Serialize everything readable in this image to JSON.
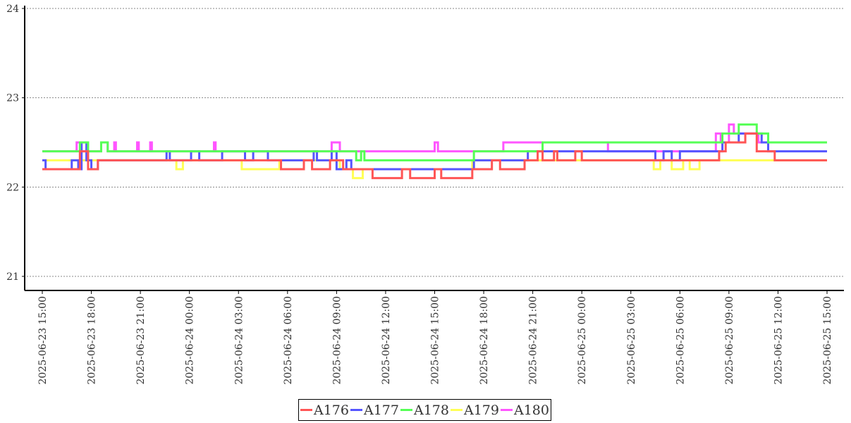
{
  "chart_data": {
    "type": "line",
    "step": true,
    "title": "",
    "xlabel": "",
    "ylabel": "",
    "ylim": [
      21,
      24
    ],
    "yticks": [
      "21",
      "22",
      "23",
      "24"
    ],
    "x_unit": "hours since 2025-06-23 15:00",
    "xlim": [
      0,
      48
    ],
    "xticks": [
      {
        "h": 0,
        "label": "2025-06-23  15:00"
      },
      {
        "h": 3,
        "label": "2025-06-23  18:00"
      },
      {
        "h": 6,
        "label": "2025-06-23  21:00"
      },
      {
        "h": 9,
        "label": "2025-06-24  00:00"
      },
      {
        "h": 12,
        "label": "2025-06-24  03:00"
      },
      {
        "h": 15,
        "label": "2025-06-24  06:00"
      },
      {
        "h": 18,
        "label": "2025-06-24  09:00"
      },
      {
        "h": 21,
        "label": "2025-06-24  12:00"
      },
      {
        "h": 24,
        "label": "2025-06-24  15:00"
      },
      {
        "h": 27,
        "label": "2025-06-24  18:00"
      },
      {
        "h": 30,
        "label": "2025-06-24  21:00"
      },
      {
        "h": 33,
        "label": "2025-06-25  00:00"
      },
      {
        "h": 36,
        "label": "2025-06-25  03:00"
      },
      {
        "h": 39,
        "label": "2025-06-25  06:00"
      },
      {
        "h": 42,
        "label": "2025-06-25  09:00"
      },
      {
        "h": 45,
        "label": "2025-06-25  12:00"
      },
      {
        "h": 48,
        "label": "2025-06-25  15:00"
      }
    ],
    "grid": "horizontal dotted",
    "legend_position": "bottom-center",
    "series": [
      {
        "name": "A180",
        "color": "#ff55ff",
        "points": [
          [
            0,
            22.4
          ],
          [
            2.1,
            22.5
          ],
          [
            2.4,
            22.4
          ],
          [
            3.6,
            22.5
          ],
          [
            4.0,
            22.4
          ],
          [
            4.4,
            22.5
          ],
          [
            4.5,
            22.4
          ],
          [
            5.8,
            22.5
          ],
          [
            5.9,
            22.4
          ],
          [
            6.6,
            22.5
          ],
          [
            6.7,
            22.4
          ],
          [
            10.5,
            22.5
          ],
          [
            10.6,
            22.4
          ],
          [
            17.7,
            22.5
          ],
          [
            18.2,
            22.4
          ],
          [
            24.0,
            22.5
          ],
          [
            24.2,
            22.4
          ],
          [
            28.2,
            22.5
          ],
          [
            34.6,
            22.4
          ],
          [
            41.2,
            22.6
          ],
          [
            41.5,
            22.5
          ],
          [
            42.0,
            22.7
          ],
          [
            42.3,
            22.6
          ],
          [
            43.8,
            22.5
          ],
          [
            48,
            22.5
          ]
        ]
      },
      {
        "name": "A179",
        "color": "#ffff55",
        "points": [
          [
            0,
            22.3
          ],
          [
            8.2,
            22.2
          ],
          [
            8.6,
            22.3
          ],
          [
            12.2,
            22.2
          ],
          [
            14.5,
            22.3
          ],
          [
            18.2,
            22.2
          ],
          [
            19.0,
            22.1
          ],
          [
            19.6,
            22.2
          ],
          [
            26.3,
            22.3
          ],
          [
            37.4,
            22.2
          ],
          [
            37.8,
            22.3
          ],
          [
            38.5,
            22.2
          ],
          [
            39.2,
            22.3
          ],
          [
            39.6,
            22.2
          ],
          [
            40.2,
            22.3
          ],
          [
            48,
            22.3
          ]
        ]
      },
      {
        "name": "A177",
        "color": "#5555ff",
        "points": [
          [
            0,
            22.3
          ],
          [
            0.2,
            22.2
          ],
          [
            1.8,
            22.3
          ],
          [
            2.2,
            22.2
          ],
          [
            2.4,
            22.5
          ],
          [
            2.7,
            22.3
          ],
          [
            3.0,
            22.2
          ],
          [
            3.4,
            22.3
          ],
          [
            7.6,
            22.4
          ],
          [
            7.8,
            22.3
          ],
          [
            9.1,
            22.4
          ],
          [
            9.6,
            22.3
          ],
          [
            11.0,
            22.4
          ],
          [
            12.4,
            22.3
          ],
          [
            12.9,
            22.4
          ],
          [
            13.8,
            22.3
          ],
          [
            16.6,
            22.4
          ],
          [
            16.8,
            22.3
          ],
          [
            17.7,
            22.4
          ],
          [
            18.0,
            22.2
          ],
          [
            18.6,
            22.3
          ],
          [
            18.9,
            22.2
          ],
          [
            26.4,
            22.3
          ],
          [
            29.7,
            22.4
          ],
          [
            37.5,
            22.3
          ],
          [
            38.0,
            22.4
          ],
          [
            38.5,
            22.3
          ],
          [
            39.0,
            22.4
          ],
          [
            41.6,
            22.5
          ],
          [
            42.6,
            22.6
          ],
          [
            44.0,
            22.5
          ],
          [
            44.4,
            22.4
          ],
          [
            48,
            22.4
          ]
        ]
      },
      {
        "name": "A178",
        "color": "#55ff55",
        "points": [
          [
            0,
            22.4
          ],
          [
            2.3,
            22.5
          ],
          [
            2.8,
            22.4
          ],
          [
            3.6,
            22.5
          ],
          [
            4.0,
            22.4
          ],
          [
            19.2,
            22.3
          ],
          [
            19.5,
            22.4
          ],
          [
            19.7,
            22.3
          ],
          [
            26.4,
            22.4
          ],
          [
            30.6,
            22.5
          ],
          [
            41.6,
            22.6
          ],
          [
            42.6,
            22.7
          ],
          [
            43.7,
            22.6
          ],
          [
            44.4,
            22.5
          ],
          [
            48,
            22.5
          ]
        ]
      },
      {
        "name": "A176",
        "color": "#ff5555",
        "points": [
          [
            0,
            22.2
          ],
          [
            2.3,
            22.4
          ],
          [
            2.8,
            22.2
          ],
          [
            3.4,
            22.3
          ],
          [
            14.6,
            22.2
          ],
          [
            16.0,
            22.3
          ],
          [
            16.5,
            22.2
          ],
          [
            17.6,
            22.3
          ],
          [
            18.4,
            22.2
          ],
          [
            20.2,
            22.1
          ],
          [
            22.0,
            22.2
          ],
          [
            22.5,
            22.1
          ],
          [
            24.0,
            22.2
          ],
          [
            24.4,
            22.1
          ],
          [
            26.3,
            22.2
          ],
          [
            27.5,
            22.3
          ],
          [
            28.0,
            22.2
          ],
          [
            29.5,
            22.3
          ],
          [
            30.3,
            22.4
          ],
          [
            30.6,
            22.3
          ],
          [
            31.3,
            22.4
          ],
          [
            31.5,
            22.3
          ],
          [
            32.6,
            22.4
          ],
          [
            33.0,
            22.3
          ],
          [
            41.4,
            22.4
          ],
          [
            41.8,
            22.5
          ],
          [
            43.0,
            22.6
          ],
          [
            43.7,
            22.4
          ],
          [
            44.8,
            22.3
          ],
          [
            48,
            22.3
          ]
        ]
      }
    ],
    "legend": [
      "A176",
      "A177",
      "A178",
      "A179",
      "A180"
    ],
    "legend_colors": [
      "#ff5555",
      "#5555ff",
      "#55ff55",
      "#ffff55",
      "#ff55ff"
    ]
  }
}
